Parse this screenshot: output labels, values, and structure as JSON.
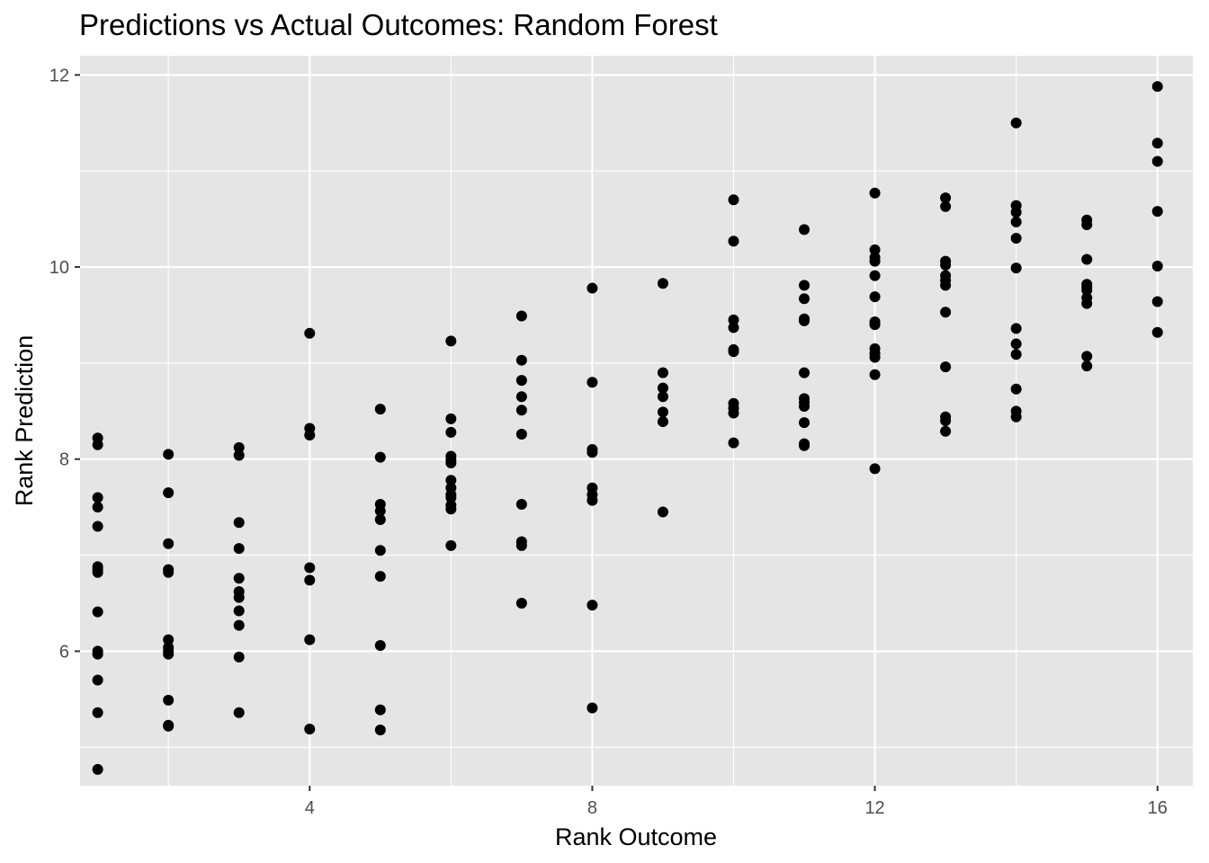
{
  "chart_data": {
    "type": "scatter",
    "title": "Predictions vs Actual Outcomes: Random Forest",
    "xlabel": "Rank Outcome",
    "ylabel": "Rank Prediction",
    "xlim": [
      0.75,
      16.5
    ],
    "ylim": [
      4.6,
      12.2
    ],
    "x_ticks": [
      4,
      8,
      12,
      16
    ],
    "y_ticks": [
      6,
      8,
      10,
      12
    ],
    "x_minor_ticks": [
      2,
      6,
      10,
      14
    ],
    "y_minor_ticks": [
      5,
      7,
      9,
      11
    ],
    "grid": true,
    "background": "#e5e5e5",
    "grid_color": "#ffffff",
    "point_color": "#000000",
    "points": [
      [
        1,
        8.22
      ],
      [
        1,
        8.15
      ],
      [
        1,
        7.6
      ],
      [
        1,
        7.5
      ],
      [
        1,
        7.3
      ],
      [
        1,
        6.88
      ],
      [
        1,
        6.85
      ],
      [
        1,
        6.82
      ],
      [
        1,
        6.41
      ],
      [
        1,
        6.0
      ],
      [
        1,
        5.97
      ],
      [
        1,
        5.7
      ],
      [
        1,
        5.36
      ],
      [
        1,
        4.77
      ],
      [
        2,
        8.05
      ],
      [
        2,
        7.65
      ],
      [
        2,
        7.12
      ],
      [
        2,
        6.85
      ],
      [
        2,
        6.82
      ],
      [
        2,
        6.12
      ],
      [
        2,
        6.04
      ],
      [
        2,
        6.0
      ],
      [
        2,
        5.97
      ],
      [
        2,
        5.49
      ],
      [
        2,
        5.23
      ],
      [
        2,
        5.22
      ],
      [
        3,
        8.12
      ],
      [
        3,
        8.04
      ],
      [
        3,
        7.34
      ],
      [
        3,
        7.07
      ],
      [
        3,
        6.76
      ],
      [
        3,
        6.62
      ],
      [
        3,
        6.56
      ],
      [
        3,
        6.42
      ],
      [
        3,
        6.27
      ],
      [
        3,
        5.94
      ],
      [
        3,
        5.36
      ],
      [
        4,
        9.31
      ],
      [
        4,
        8.32
      ],
      [
        4,
        8.25
      ],
      [
        4,
        6.87
      ],
      [
        4,
        6.74
      ],
      [
        4,
        6.12
      ],
      [
        4,
        5.19
      ],
      [
        5,
        8.52
      ],
      [
        5,
        8.02
      ],
      [
        5,
        7.53
      ],
      [
        5,
        7.46
      ],
      [
        5,
        7.37
      ],
      [
        5,
        7.05
      ],
      [
        5,
        6.78
      ],
      [
        5,
        6.06
      ],
      [
        5,
        5.39
      ],
      [
        5,
        5.18
      ],
      [
        6,
        9.23
      ],
      [
        6,
        8.42
      ],
      [
        6,
        8.28
      ],
      [
        6,
        8.03
      ],
      [
        6,
        7.99
      ],
      [
        6,
        7.96
      ],
      [
        6,
        7.78
      ],
      [
        6,
        7.7
      ],
      [
        6,
        7.63
      ],
      [
        6,
        7.6
      ],
      [
        6,
        7.52
      ],
      [
        6,
        7.48
      ],
      [
        6,
        7.1
      ],
      [
        7,
        9.49
      ],
      [
        7,
        9.03
      ],
      [
        7,
        8.82
      ],
      [
        7,
        8.65
      ],
      [
        7,
        8.51
      ],
      [
        7,
        8.26
      ],
      [
        7,
        7.53
      ],
      [
        7,
        7.14
      ],
      [
        7,
        7.1
      ],
      [
        7,
        6.5
      ],
      [
        8,
        9.78
      ],
      [
        8,
        8.8
      ],
      [
        8,
        8.1
      ],
      [
        8,
        8.07
      ],
      [
        8,
        7.7
      ],
      [
        8,
        7.63
      ],
      [
        8,
        7.57
      ],
      [
        8,
        6.48
      ],
      [
        8,
        5.41
      ],
      [
        9,
        9.83
      ],
      [
        9,
        8.9
      ],
      [
        9,
        8.74
      ],
      [
        9,
        8.65
      ],
      [
        9,
        8.49
      ],
      [
        9,
        8.39
      ],
      [
        9,
        7.45
      ],
      [
        10,
        10.7
      ],
      [
        10,
        10.27
      ],
      [
        10,
        9.45
      ],
      [
        10,
        9.37
      ],
      [
        10,
        9.14
      ],
      [
        10,
        9.12
      ],
      [
        10,
        8.58
      ],
      [
        10,
        8.53
      ],
      [
        10,
        8.48
      ],
      [
        10,
        8.17
      ],
      [
        11,
        10.39
      ],
      [
        11,
        9.81
      ],
      [
        11,
        9.67
      ],
      [
        11,
        9.46
      ],
      [
        11,
        9.44
      ],
      [
        11,
        8.9
      ],
      [
        11,
        8.63
      ],
      [
        11,
        8.59
      ],
      [
        11,
        8.55
      ],
      [
        11,
        8.38
      ],
      [
        11,
        8.16
      ],
      [
        11,
        8.14
      ],
      [
        12,
        10.77
      ],
      [
        12,
        10.18
      ],
      [
        12,
        10.1
      ],
      [
        12,
        10.06
      ],
      [
        12,
        9.91
      ],
      [
        12,
        9.69
      ],
      [
        12,
        9.43
      ],
      [
        12,
        9.4
      ],
      [
        12,
        9.15
      ],
      [
        12,
        9.1
      ],
      [
        12,
        9.06
      ],
      [
        12,
        8.88
      ],
      [
        12,
        7.9
      ],
      [
        13,
        10.72
      ],
      [
        13,
        10.63
      ],
      [
        13,
        10.06
      ],
      [
        13,
        10.02
      ],
      [
        13,
        9.91
      ],
      [
        13,
        9.86
      ],
      [
        13,
        9.81
      ],
      [
        13,
        9.53
      ],
      [
        13,
        8.96
      ],
      [
        13,
        8.44
      ],
      [
        13,
        8.4
      ],
      [
        13,
        8.29
      ],
      [
        14,
        11.5
      ],
      [
        14,
        10.64
      ],
      [
        14,
        10.57
      ],
      [
        14,
        10.47
      ],
      [
        14,
        10.3
      ],
      [
        14,
        9.99
      ],
      [
        14,
        9.36
      ],
      [
        14,
        9.2
      ],
      [
        14,
        9.09
      ],
      [
        14,
        8.73
      ],
      [
        14,
        8.5
      ],
      [
        14,
        8.44
      ],
      [
        15,
        10.49
      ],
      [
        15,
        10.44
      ],
      [
        15,
        10.08
      ],
      [
        15,
        9.82
      ],
      [
        15,
        9.79
      ],
      [
        15,
        9.76
      ],
      [
        15,
        9.68
      ],
      [
        15,
        9.62
      ],
      [
        15,
        9.07
      ],
      [
        15,
        8.97
      ],
      [
        16,
        11.88
      ],
      [
        16,
        11.29
      ],
      [
        16,
        11.1
      ],
      [
        16,
        10.58
      ],
      [
        16,
        10.01
      ],
      [
        16,
        9.64
      ],
      [
        16,
        9.32
      ]
    ]
  }
}
